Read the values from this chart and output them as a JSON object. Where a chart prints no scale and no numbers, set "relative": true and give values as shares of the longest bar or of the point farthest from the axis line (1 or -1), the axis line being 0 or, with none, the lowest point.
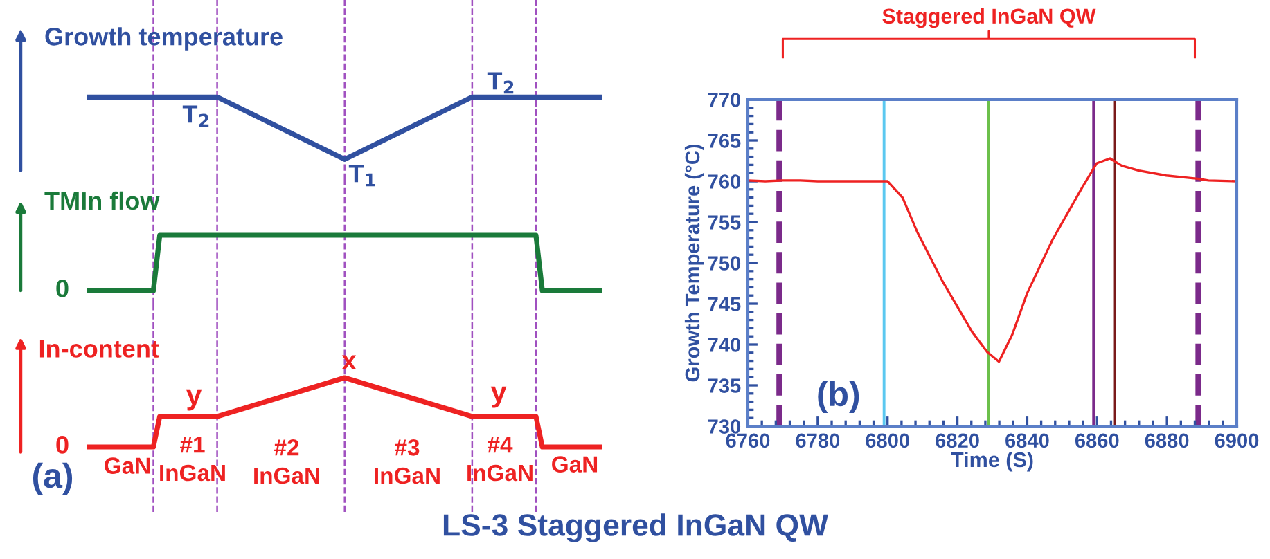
{
  "chart_data": [
    {
      "type": "line",
      "relative": true,
      "ylabel": "Growth temperature",
      "grid": "x",
      "legend": false,
      "categories": [
        null,
        null,
        null,
        null,
        null,
        null,
        null,
        null,
        null,
        null,
        null,
        null,
        null,
        null,
        null,
        null,
        null,
        null,
        null,
        null,
        null,
        null,
        null,
        null,
        null,
        null,
        null,
        null,
        null,
        null,
        null,
        null,
        null,
        null,
        null,
        null,
        null,
        null,
        null,
        null,
        null,
        null,
        null,
        null,
        null,
        null,
        null,
        null,
        null,
        null,
        null,
        null,
        null,
        null,
        null,
        null,
        null,
        null,
        null,
        null,
        null,
        null,
        null,
        null,
        null,
        null,
        null,
        null,
        null,
        null,
        null,
        null,
        null,
        null,
        null,
        null,
        null,
        null,
        null,
        null,
        null
      ],
      "series": [
        {
          "color": "#3050a0",
          "values": [
            1,
            null,
            null,
            null,
            null,
            null,
            null,
            null,
            null,
            null,
            null,
            null,
            null,
            null,
            null,
            null,
            null,
            null,
            null,
            null,
            1,
            null,
            null,
            null,
            null,
            null,
            null,
            null,
            null,
            null,
            null,
            null,
            null,
            null,
            null,
            null,
            null,
            null,
            null,
            null,
            0,
            null,
            null,
            null,
            null,
            null,
            null,
            null,
            null,
            null,
            null,
            null,
            null,
            null,
            null,
            null,
            null,
            null,
            null,
            null,
            1,
            null,
            null,
            null,
            null,
            null,
            null,
            null,
            null,
            null,
            null,
            null,
            null,
            null,
            null,
            null,
            null,
            null,
            null,
            null,
            1
          ]
        }
      ],
      "annotations": [
        "T$_{2}$",
        "T$_{1}$",
        "T$_{2}$"
      ]
    },
    {
      "type": "line",
      "relative": true,
      "ylabel": "TMIn flow",
      "grid": "x",
      "legend": false,
      "categories": [
        null,
        null,
        null,
        null,
        null,
        null,
        null,
        null,
        null,
        null,
        null,
        null,
        null,
        null,
        null,
        null,
        null,
        null,
        null,
        null,
        null,
        null,
        null,
        null,
        null,
        null,
        null,
        null,
        null,
        null,
        null,
        null,
        null,
        null,
        null,
        null,
        null,
        null,
        null,
        null,
        null,
        null,
        null,
        null,
        null,
        null,
        null,
        null,
        null,
        null,
        null,
        null,
        null,
        null,
        null,
        null,
        null,
        null,
        null,
        null,
        null,
        null,
        null,
        null,
        null,
        null,
        null,
        null,
        null,
        null,
        null,
        null,
        null,
        null,
        null,
        null,
        null,
        null,
        null,
        null,
        null
      ],
      "series": [
        {
          "color": "#1a7a3a",
          "values": [
            0,
            null,
            null,
            null,
            null,
            null,
            null,
            null,
            null,
            null,
            0,
            1,
            null,
            null,
            null,
            null,
            null,
            null,
            null,
            null,
            null,
            null,
            null,
            null,
            null,
            null,
            null,
            null,
            null,
            null,
            null,
            null,
            null,
            null,
            null,
            null,
            null,
            null,
            null,
            null,
            null,
            null,
            null,
            null,
            null,
            null,
            null,
            null,
            null,
            null,
            null,
            null,
            null,
            null,
            null,
            null,
            null,
            null,
            null,
            null,
            null,
            null,
            null,
            null,
            null,
            null,
            null,
            null,
            null,
            null,
            1,
            0,
            null,
            null,
            null,
            null,
            null,
            null,
            null,
            null,
            0
          ]
        }
      ],
      "annotations": [
        "0"
      ]
    },
    {
      "type": "line",
      "relative": true,
      "ylabel": "In-content",
      "grid": "x",
      "legend": false,
      "categories": [
        null,
        null,
        null,
        null,
        null,
        null,
        null,
        null,
        null,
        null,
        null,
        null,
        null,
        null,
        null,
        null,
        null,
        null,
        null,
        null,
        null,
        null,
        null,
        null,
        null,
        null,
        null,
        null,
        null,
        null,
        null,
        null,
        null,
        null,
        null,
        null,
        null,
        null,
        null,
        null,
        null,
        null,
        null,
        null,
        null,
        null,
        null,
        null,
        null,
        null,
        null,
        null,
        null,
        null,
        null,
        null,
        null,
        null,
        null,
        null,
        null,
        null,
        null,
        null,
        null,
        null,
        null,
        null,
        null,
        null,
        null,
        null,
        null,
        null,
        null,
        null,
        null,
        null,
        null,
        null,
        null
      ],
      "series": [
        {
          "color": "#ee2222",
          "values": [
            0,
            null,
            null,
            null,
            null,
            null,
            null,
            null,
            null,
            null,
            0,
            0.44,
            null,
            null,
            null,
            null,
            null,
            null,
            null,
            null,
            0.44,
            null,
            null,
            null,
            null,
            null,
            null,
            null,
            null,
            null,
            null,
            null,
            null,
            null,
            null,
            null,
            null,
            null,
            null,
            null,
            1,
            null,
            null,
            null,
            null,
            null,
            null,
            null,
            null,
            null,
            null,
            null,
            null,
            null,
            null,
            null,
            null,
            null,
            null,
            null,
            0.44,
            null,
            null,
            null,
            null,
            null,
            null,
            null,
            null,
            null,
            0.44,
            0,
            null,
            null,
            null,
            null,
            null,
            null,
            null,
            null,
            0
          ]
        }
      ],
      "annotations": [
        "0",
        "y",
        "x",
        "y",
        "GaN",
        "#1\nInGaN",
        "#2\nInGaN",
        "#3\nInGaN",
        "#4\nInGaN",
        "GaN",
        "(a)"
      ]
    },
    {
      "type": "line",
      "title": "LS-3 Staggered InGaN QW",
      "xlabel": "Time (S)",
      "ylabel": "Growth Temperature (°C)",
      "xlim": [
        6760,
        6900
      ],
      "ylim": [
        730,
        770
      ],
      "xticks": [
        6760,
        6780,
        6800,
        6820,
        6840,
        6860,
        6880,
        6900
      ],
      "yticks": [
        730,
        735,
        740,
        745,
        750,
        755,
        760,
        765,
        770
      ],
      "marker": "none",
      "series": [
        {
          "color": "#ee2222",
          "x": [
            6760,
            6765,
            6770,
            6775,
            6780,
            6799,
            6800,
            6804.3,
            6808.6,
            6815.8,
            6824.3,
            6828.5,
            6831.9,
            6835.7,
            6840,
            6847.2,
            6855.7,
            6859.9,
            6863.7,
            6867.1,
            6872,
            6879.8,
            6888.8,
            6891.9,
            6900
          ],
          "values": [
            760.1,
            760.0,
            760.1,
            760.1,
            760.0,
            760.0,
            760.0,
            758.0,
            753.7,
            747.7,
            741.5,
            739.1,
            737.9,
            741.2,
            746.3,
            752.8,
            759.2,
            762.2,
            762.8,
            761.9,
            761.3,
            760.7,
            760.3,
            760.1,
            760.0
          ]
        }
      ],
      "ref_lines": [
        {
          "axis": "x",
          "value": 6769,
          "color": "#7b2a8a",
          "line_style": "dashed"
        },
        {
          "axis": "x",
          "value": 6799,
          "color": "#5bc8f0",
          "line_style": "solid"
        },
        {
          "axis": "x",
          "value": 6829,
          "color": "#6cc04a",
          "line_style": "solid"
        },
        {
          "axis": "x",
          "value": 6859,
          "color": "#7b2a8a",
          "line_style": "solid"
        },
        {
          "axis": "x",
          "value": 6865,
          "color": "#7a1a1a",
          "line_style": "solid"
        },
        {
          "axis": "x",
          "value": 6889,
          "color": "#7b2a8a",
          "line_style": "dashed"
        }
      ],
      "annotations": [
        "Staggered InGaN QW",
        "(b)"
      ]
    }
  ]
}
